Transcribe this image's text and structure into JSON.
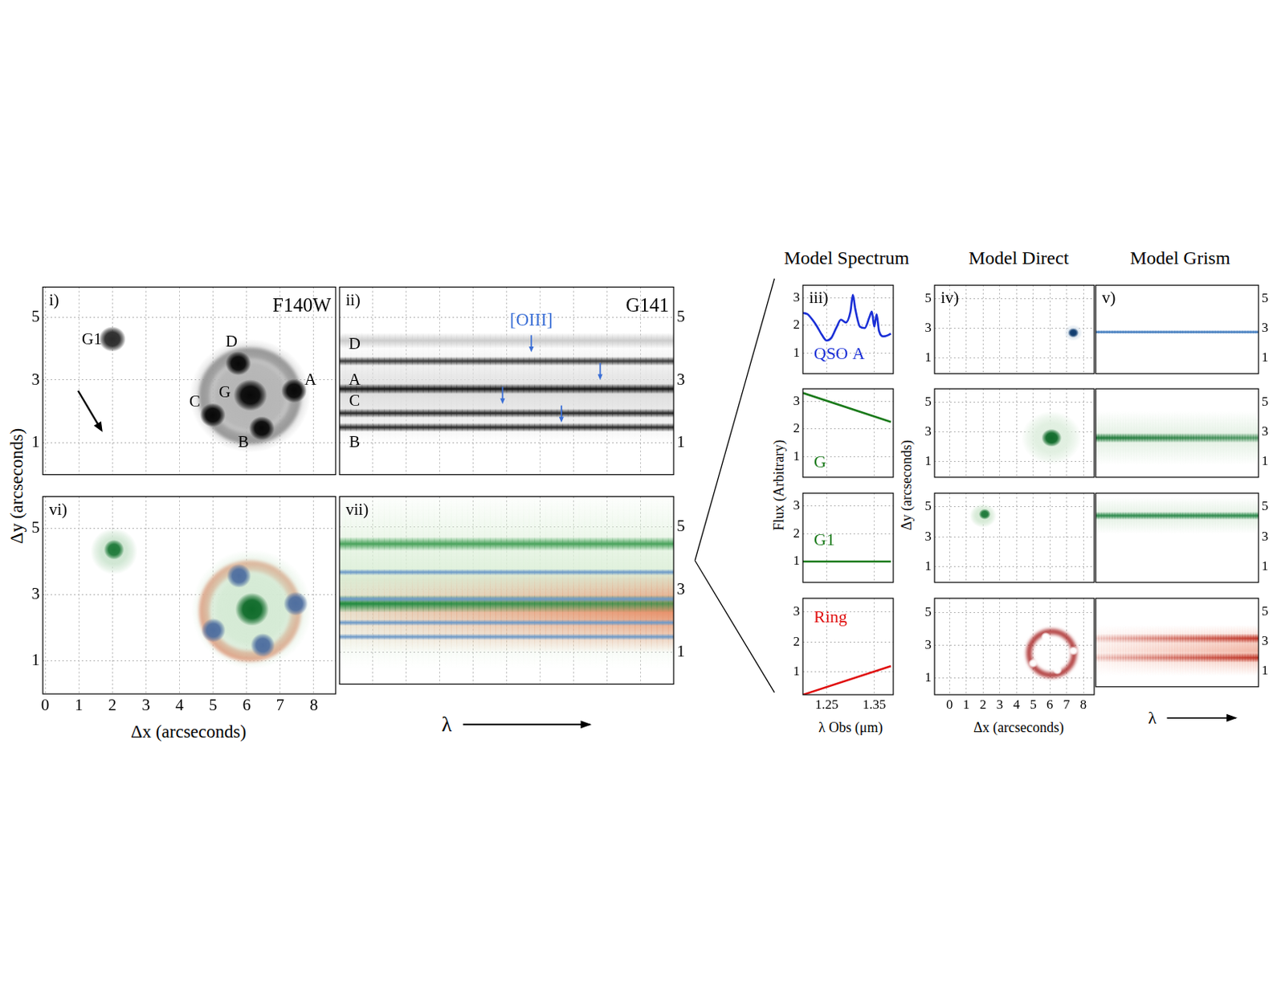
{
  "chart_data": [
    {
      "type": "image",
      "label": "i)",
      "title": "F140W",
      "xlim": [
        -0.07,
        8.65
      ],
      "ylim": [
        0,
        5.95
      ],
      "xticks": [
        0,
        1,
        2,
        3,
        4,
        5,
        6,
        7,
        8
      ],
      "yticks": [
        1,
        3,
        5
      ],
      "grid": true,
      "tick_labels": "y",
      "ring": {
        "x": 6.1,
        "y": 2.5,
        "radius": 1.35,
        "color": "#666666"
      },
      "objects": [
        {
          "x": 6.1,
          "y": 2.5,
          "size": 1.8,
          "color": "#b4b4b4"
        },
        {
          "x": 2.0,
          "y": 4.3,
          "size": 0.4,
          "color": "#2a2a2a"
        },
        {
          "x": 6.11,
          "y": 2.52,
          "size": 0.5,
          "color": "#080808"
        },
        {
          "x": 5.75,
          "y": 3.53,
          "size": 0.38,
          "color": "#080808"
        },
        {
          "x": 7.41,
          "y": 2.66,
          "size": 0.38,
          "color": "#080808"
        },
        {
          "x": 4.99,
          "y": 1.89,
          "size": 0.38,
          "color": "#080808"
        },
        {
          "x": 6.45,
          "y": 1.47,
          "size": 0.38,
          "color": "#080808"
        }
      ],
      "labels": [
        {
          "text": "G1",
          "x": 1.39,
          "y": 4.27
        },
        {
          "text": "D",
          "x": 5.55,
          "y": 4.2
        },
        {
          "text": "A",
          "x": 7.9,
          "y": 3.0
        },
        {
          "text": "C",
          "x": 4.45,
          "y": 2.3
        },
        {
          "text": "G",
          "x": 5.35,
          "y": 2.6
        },
        {
          "text": "B",
          "x": 5.9,
          "y": 1.0
        }
      ],
      "compass": {
        "x": [
          0.98,
          1.71
        ],
        "y": [
          2.66,
          1.35
        ]
      }
    },
    {
      "type": "grism",
      "label": "ii)",
      "title": "G141",
      "xlim": [
        0,
        1
      ],
      "ylim": [
        0,
        5.95
      ],
      "xticks": [
        0.1,
        0.2,
        0.3,
        0.4,
        0.5,
        0.6,
        0.7,
        0.8,
        0.9
      ],
      "yticks": [
        1,
        3,
        5
      ],
      "grid": true,
      "tick_labels": "y",
      "traces": [
        {
          "y": 2.6,
          "width": 1.6,
          "color": "#dedede",
          "flux": [
            1,
            1
          ]
        },
        {
          "y": 4.25,
          "width": 0.25,
          "color": "#cccccc",
          "flux": [
            1,
            1
          ]
        },
        {
          "y": 3.6,
          "width": 0.14,
          "color": "#3a3a3a",
          "flux": [
            1,
            1
          ]
        },
        {
          "y": 2.72,
          "width": 0.16,
          "color": "#151515",
          "flux": [
            1,
            1
          ]
        },
        {
          "y": 1.95,
          "width": 0.14,
          "color": "#2a2a2a",
          "flux": [
            1,
            1
          ]
        },
        {
          "y": 1.5,
          "width": 0.14,
          "color": "#2a2a2a",
          "flux": [
            1,
            1
          ]
        }
      ],
      "labels": [
        {
          "text": "D",
          "x": 0.045,
          "y": 4.13
        },
        {
          "text": "A",
          "x": 0.045,
          "y": 2.99
        },
        {
          "text": "C",
          "x": 0.045,
          "y": 2.31
        },
        {
          "text": "B",
          "x": 0.045,
          "y": 1.0
        }
      ],
      "annotation": {
        "text": "[OIII]",
        "x": 0.574,
        "y": 4.87,
        "color": "#3b6fd6"
      },
      "arrows": [
        {
          "x": 0.574,
          "y": 3.88
        },
        {
          "x": 0.78,
          "y": 3.0
        },
        {
          "x": 0.488,
          "y": 2.24
        },
        {
          "x": 0.664,
          "y": 1.65
        }
      ]
    },
    {
      "type": "image",
      "label": "vi)",
      "xlim": [
        -0.07,
        8.65
      ],
      "ylim": [
        0,
        5.95
      ],
      "xticks": [
        0,
        1,
        2,
        3,
        4,
        5,
        6,
        7,
        8
      ],
      "yticks": [
        1,
        3,
        5
      ],
      "grid": true,
      "tick_labels": true,
      "xlabel": "Δx (arcseconds)",
      "ylabel": "Δy (arcseconds)",
      "ring": {
        "x": 6.1,
        "y": 2.5,
        "radius": 1.35,
        "color": "#e0603c"
      },
      "objects": [
        {
          "x": 6.15,
          "y": 2.55,
          "size": 1.8,
          "color": "#d4ead4"
        },
        {
          "x": 2.05,
          "y": 4.3,
          "size": 0.7,
          "color": "#cfe6d2"
        },
        {
          "x": 2.05,
          "y": 4.35,
          "size": 0.3,
          "color": "#1f7a3a"
        },
        {
          "x": 6.16,
          "y": 2.55,
          "size": 0.5,
          "color": "#0f6b2a"
        },
        {
          "x": 5.77,
          "y": 3.56,
          "size": 0.36,
          "color": "#4f6fa0"
        },
        {
          "x": 7.46,
          "y": 2.72,
          "size": 0.36,
          "color": "#4f6fa0"
        },
        {
          "x": 5.01,
          "y": 1.92,
          "size": 0.36,
          "color": "#4f6fa0"
        },
        {
          "x": 6.48,
          "y": 1.47,
          "size": 0.36,
          "color": "#4f6fa0"
        }
      ]
    },
    {
      "type": "grism",
      "label": "vii)",
      "xlim": [
        0,
        1
      ],
      "ylim": [
        0,
        5.95
      ],
      "xticks": [
        0.1,
        0.2,
        0.3,
        0.4,
        0.5,
        0.6,
        0.7,
        0.8,
        0.9
      ],
      "yticks": [
        1,
        3,
        5
      ],
      "grid": true,
      "tick_labels": "y",
      "xlabel": "λ",
      "traces": [
        {
          "y": 3.3,
          "width": 2.8,
          "color": "#dcefd8",
          "flux": [
            1,
            1
          ]
        },
        {
          "y": 2.3,
          "width": 1.3,
          "color": "#e8906a",
          "flux": [
            0.25,
            1.2
          ]
        },
        {
          "y": 4.45,
          "width": 0.22,
          "color": "#4aa35c",
          "flux": [
            1,
            1
          ]
        },
        {
          "y": 2.55,
          "width": 0.28,
          "color": "#1f8a3e",
          "flux": [
            3.3,
            2.25
          ]
        },
        {
          "y": 3.55,
          "width": 0.1,
          "color": "#6e9ac8",
          "flux": [
            1,
            1
          ]
        },
        {
          "y": 2.7,
          "width": 0.1,
          "color": "#6e9ac8",
          "flux": [
            1,
            1
          ]
        },
        {
          "y": 1.95,
          "width": 0.1,
          "color": "#6e9ac8",
          "flux": [
            1,
            1
          ]
        },
        {
          "y": 1.5,
          "width": 0.1,
          "color": "#6e9ac8",
          "flux": [
            1,
            1
          ]
        }
      ]
    },
    {
      "type": "line",
      "label": "iii)",
      "column_title": "Model Spectrum",
      "xlim": [
        1.2,
        1.39
      ],
      "ylim": [
        0.25,
        3.45
      ],
      "xticks": [
        1.25,
        1.35
      ],
      "yticks": [
        1,
        2,
        3
      ],
      "grid": true,
      "tick_labels": "y",
      "series": [
        {
          "name": "QSO A",
          "color": "#1a2fd6",
          "x": [
            1.2,
            1.21,
            1.22,
            1.23,
            1.24,
            1.25,
            1.26,
            1.27,
            1.28,
            1.29,
            1.3,
            1.305,
            1.31,
            1.32,
            1.33,
            1.34,
            1.345,
            1.35,
            1.355,
            1.36,
            1.37,
            1.38,
            1.385
          ],
          "values": [
            2.45,
            2.4,
            2.2,
            1.95,
            1.65,
            1.45,
            1.55,
            1.9,
            2.2,
            2.1,
            2.5,
            3.1,
            2.6,
            1.95,
            1.9,
            2.3,
            2.5,
            1.95,
            2.4,
            1.8,
            1.6,
            1.65,
            1.7
          ]
        }
      ]
    },
    {
      "type": "line",
      "xlim": [
        1.2,
        1.39
      ],
      "ylim": [
        0.25,
        3.45
      ],
      "xticks": [
        1.25,
        1.35
      ],
      "yticks": [
        1,
        2,
        3
      ],
      "grid": true,
      "tick_labels": "y",
      "series": [
        {
          "name": "G",
          "color": "#1a7a1a",
          "x": [
            1.2,
            1.385
          ],
          "values": [
            3.3,
            2.25
          ]
        }
      ]
    },
    {
      "type": "line",
      "xlim": [
        1.2,
        1.39
      ],
      "ylim": [
        0.25,
        3.45
      ],
      "xticks": [
        1.25,
        1.35
      ],
      "yticks": [
        1,
        2,
        3
      ],
      "grid": true,
      "tick_labels": "y",
      "series": [
        {
          "name": "G1",
          "color": "#1a7a1a",
          "x": [
            1.2,
            1.385
          ],
          "values": [
            1.0,
            1.0
          ]
        }
      ]
    },
    {
      "type": "line",
      "xlim": [
        1.2,
        1.39
      ],
      "ylim": [
        0.25,
        3.45
      ],
      "xticks": [
        1.25,
        1.35
      ],
      "yticks": [
        1,
        2,
        3
      ],
      "grid": true,
      "tick_labels": true,
      "xlabel": "λ Obs (μm)",
      "ylabel": "Flux (Arbitrary)",
      "series": [
        {
          "name": "Ring",
          "color": "#e01010",
          "x": [
            1.2,
            1.385
          ],
          "values": [
            0.25,
            1.2
          ]
        }
      ]
    },
    {
      "type": "image",
      "label": "iv)",
      "column_title": "Model Direct",
      "xlim": [
        -0.9,
        8.65
      ],
      "ylim": [
        -0.05,
        5.9
      ],
      "xticks": [
        0,
        1,
        2,
        3,
        4,
        5,
        6,
        7,
        8
      ],
      "yticks": [
        1,
        3,
        5
      ],
      "grid": true,
      "tick_labels": "y",
      "objects": [
        {
          "x": 7.4,
          "y": 2.7,
          "size": 0.55,
          "color": "#dde6ef"
        },
        {
          "x": 7.4,
          "y": 2.7,
          "size": 0.32,
          "color": "#0d3a6e"
        }
      ]
    },
    {
      "type": "image",
      "xlim": [
        -0.9,
        8.65
      ],
      "ylim": [
        -0.05,
        5.9
      ],
      "xticks": [
        0,
        1,
        2,
        3,
        4,
        5,
        6,
        7,
        8
      ],
      "yticks": [
        1,
        3,
        5
      ],
      "grid": true,
      "tick_labels": "y",
      "objects": [
        {
          "x": 6.1,
          "y": 2.6,
          "size": 1.8,
          "color": "#e0efe0"
        },
        {
          "x": 6.1,
          "y": 2.6,
          "size": 0.6,
          "color": "#0f6b2a"
        }
      ]
    },
    {
      "type": "image",
      "xlim": [
        -0.9,
        8.65
      ],
      "ylim": [
        -0.05,
        5.9
      ],
      "xticks": [
        0,
        1,
        2,
        3,
        4,
        5,
        6,
        7,
        8
      ],
      "yticks": [
        1,
        3,
        5
      ],
      "grid": true,
      "tick_labels": "y",
      "objects": [
        {
          "x": 2.0,
          "y": 4.4,
          "size": 0.8,
          "color": "#d6ead6"
        },
        {
          "x": 2.1,
          "y": 4.5,
          "size": 0.35,
          "color": "#1f7a3a"
        }
      ]
    },
    {
      "type": "image",
      "xlim": [
        -0.9,
        8.65
      ],
      "ylim": [
        -0.05,
        5.9
      ],
      "xticks": [
        0,
        1,
        2,
        3,
        4,
        5,
        6,
        7,
        8
      ],
      "yticks": [
        1,
        3,
        5
      ],
      "grid": true,
      "tick_labels": true,
      "xlabel": "Δx (arcseconds)",
      "ylabel": "Δy (arcseconds)",
      "ring": {
        "x": 6.1,
        "y": 2.5,
        "radius": 1.35,
        "color": "#a51d1d"
      },
      "objects": [
        {
          "x": 5.75,
          "y": 3.53,
          "size": 0.28,
          "color": "#ffffff"
        },
        {
          "x": 7.41,
          "y": 2.66,
          "size": 0.28,
          "color": "#ffffff"
        },
        {
          "x": 4.99,
          "y": 1.89,
          "size": 0.28,
          "color": "#ffffff"
        },
        {
          "x": 6.45,
          "y": 1.47,
          "size": 0.28,
          "color": "#ffffff"
        }
      ]
    },
    {
      "type": "grism",
      "label": "v)",
      "column_title": "Model Grism",
      "xlim": [
        0,
        1
      ],
      "ylim": [
        -0.05,
        5.9
      ],
      "yticks": [
        1,
        3,
        5
      ],
      "grid": false,
      "tick_labels": "y",
      "traces": [
        {
          "y": 2.75,
          "width": 0.13,
          "color": "#2f6fb8",
          "flux": [
            1,
            1
          ]
        }
      ]
    },
    {
      "type": "grism",
      "xlim": [
        0,
        1
      ],
      "ylim": [
        -0.05,
        5.9
      ],
      "yticks": [
        1,
        3,
        5
      ],
      "grid": false,
      "tick_labels": "y",
      "traces": [
        {
          "y": 2.6,
          "width": 1.8,
          "color": "#e3f0e3",
          "flux": [
            1,
            1
          ]
        },
        {
          "y": 2.6,
          "width": 0.32,
          "color": "#1f7a3a",
          "flux": [
            3.3,
            2.25
          ]
        }
      ]
    },
    {
      "type": "grism",
      "xlim": [
        0,
        1
      ],
      "ylim": [
        -0.05,
        5.9
      ],
      "yticks": [
        1,
        3,
        5
      ],
      "grid": false,
      "tick_labels": "y",
      "traces": [
        {
          "y": 4.4,
          "width": 1.2,
          "color": "#e3f0e3",
          "flux": [
            1,
            1
          ]
        },
        {
          "y": 4.4,
          "width": 0.26,
          "color": "#2e8b4e",
          "flux": [
            1,
            1
          ]
        }
      ]
    },
    {
      "type": "grism",
      "xlim": [
        0,
        1
      ],
      "ylim": [
        -0.05,
        5.9
      ],
      "yticks": [
        1,
        3,
        5
      ],
      "grid": false,
      "tick_labels": "y",
      "xlabel": "λ",
      "traces": [
        {
          "y": 2.4,
          "width": 1.7,
          "color": "#f2b8a8",
          "flux": [
            0.25,
            1.2
          ]
        },
        {
          "y": 3.2,
          "width": 0.32,
          "color": "#c0392b",
          "flux": [
            0.25,
            1.2
          ]
        },
        {
          "y": 1.9,
          "width": 0.32,
          "color": "#c0392b",
          "flux": [
            0.25,
            1.2
          ]
        }
      ]
    }
  ]
}
